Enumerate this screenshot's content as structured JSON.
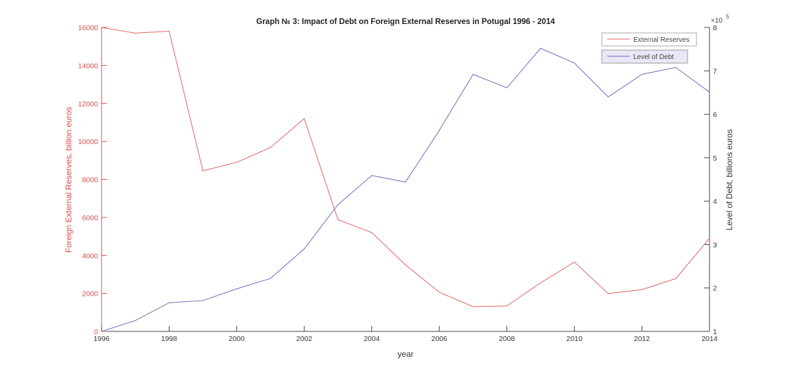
{
  "chart_data": {
    "type": "line",
    "title": "Graph № 3: Impact of Debt on Foreign External Reserves in Potugal 1996 - 2014",
    "xlabel": "year",
    "ylabel_left": "Foreign External Reserves, billion euros",
    "ylabel_right": "Level of Debt, billions euros",
    "right_exponent_label": "×10",
    "right_exponent": "5",
    "xlim": [
      1996,
      2014
    ],
    "ylim_left": [
      0,
      16000
    ],
    "ylim_right": [
      1,
      8
    ],
    "x": [
      1996,
      1997,
      1998,
      1999,
      2000,
      2001,
      2002,
      2003,
      2004,
      2005,
      2006,
      2007,
      2008,
      2009,
      2010,
      2011,
      2012,
      2013,
      2014
    ],
    "xticks": [
      "1996",
      "1998",
      "2000",
      "2002",
      "2004",
      "2006",
      "2008",
      "2010",
      "2012",
      "2014"
    ],
    "yticks_left": [
      "0",
      "2000",
      "4000",
      "6000",
      "8000",
      "10000",
      "12000",
      "14000",
      "16000"
    ],
    "yticks_right": [
      "1",
      "2",
      "3",
      "4",
      "5",
      "6",
      "7",
      "8"
    ],
    "series": [
      {
        "name": "External Reserves",
        "axis": "left",
        "color": "#e06060",
        "values": [
          16000,
          15700,
          15800,
          8450,
          8900,
          9680,
          11200,
          5880,
          5200,
          3500,
          2060,
          1300,
          1340,
          2560,
          3650,
          1990,
          2200,
          2780,
          4900
        ]
      },
      {
        "name": "Level of Debt",
        "axis": "right",
        "color": "#6b6bbf",
        "values": [
          1.0,
          1.25,
          1.66,
          1.71,
          1.98,
          2.22,
          2.9,
          3.92,
          4.59,
          4.44,
          5.63,
          6.92,
          6.61,
          7.52,
          7.18,
          6.4,
          6.92,
          7.08,
          6.51
        ]
      }
    ],
    "legend_position": "top-right",
    "grid": false
  }
}
